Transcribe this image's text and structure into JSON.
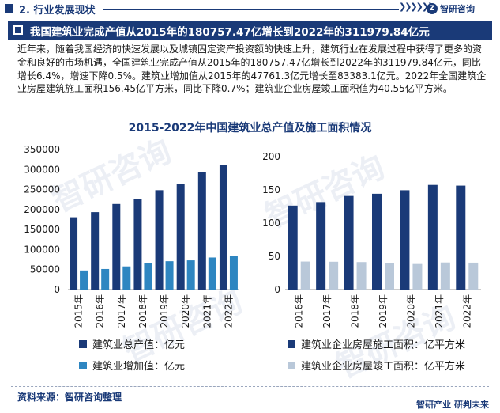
{
  "section_label": "2. 行业发展现状",
  "logo_text": "智研咨询",
  "banner_title": "我国建筑业完成产值从2015年的180757.47亿增长到2022年的311979.84亿元",
  "paragraph": "近年来，随着我国经济的快速发展以及城镇固定资产投资额的快速上升，建筑行业在发展过程中获得了更多的资金和良好的市场机遇，全国建筑业完成产值从2015年的180757.47亿增长到2022年的311979.84亿元，同比增长6.4%，增速下降0.5%。建筑业增加值从2015年的47761.3亿元增长至83383.1亿元。2022年全国建筑企业房屋建筑施工面积156.45亿平方米，同比下降0.7%；建筑业企业房屋竣工面积值为40.55亿平方米。",
  "chart_title": "2015-2022年中国建筑业总产值及施工面积情况",
  "source_text": "资料来源：智研咨询整理",
  "slogan": "智研产业  研判未来",
  "colors": {
    "dark": "#1a3a78",
    "mid": "#2e86c1",
    "light": "#b9c8d9"
  },
  "chart_data": [
    {
      "type": "bar",
      "categories": [
        "2015年",
        "2016年",
        "2017年",
        "2018年",
        "2019年",
        "2020年",
        "2021年",
        "2022年"
      ],
      "series": [
        {
          "name": "建筑业总产值：亿元",
          "values": [
            180757,
            193567,
            213944,
            225817,
            248446,
            263947,
            293079,
            311980
          ]
        },
        {
          "name": "建筑业增加值：亿元",
          "values": [
            47761,
            51499,
            57906,
            65493,
            70904,
            72996,
            80138,
            83383
          ]
        }
      ],
      "yticks": [
        "0",
        "50000",
        "100000",
        "150000",
        "200000",
        "250000",
        "300000",
        "350000"
      ],
      "ylim": [
        0,
        350000
      ],
      "legend": "bottom"
    },
    {
      "type": "bar",
      "categories": [
        "2016年",
        "2017年",
        "2018年",
        "2019年",
        "2020年",
        "2021年",
        "2022年"
      ],
      "series": [
        {
          "name": "建筑业企业房屋施工面积：亿平方米",
          "values": [
            126.4,
            131.7,
            140.9,
            144.2,
            149.5,
            157.5,
            156.45
          ]
        },
        {
          "name": "建筑业企业房屋竣工面积：亿平方米",
          "values": [
            42.2,
            41.9,
            41.4,
            40.2,
            38.5,
            40.8,
            40.55
          ]
        }
      ],
      "yticks": [
        "0",
        "50",
        "100",
        "150",
        "200"
      ],
      "ylim": [
        0,
        200
      ],
      "legend": "bottom"
    }
  ]
}
